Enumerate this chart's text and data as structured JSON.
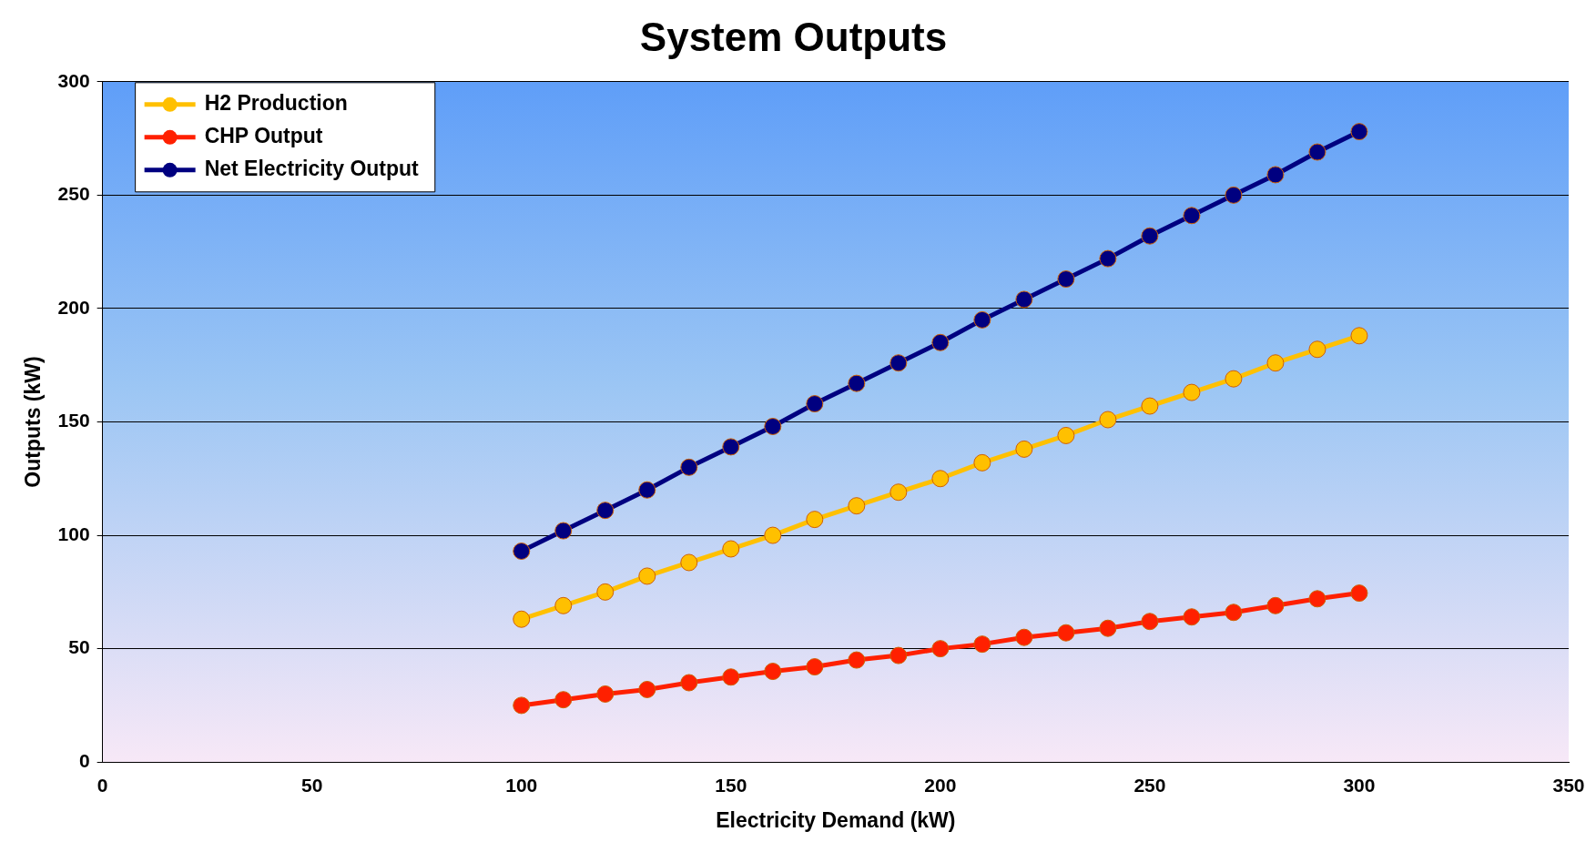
{
  "chart_data": {
    "type": "line",
    "title": "System Outputs",
    "xlabel": "Electricity Demand (kW)",
    "ylabel": "Outputs (kW)",
    "x": [
      100,
      110,
      120,
      130,
      140,
      150,
      160,
      170,
      180,
      190,
      200,
      210,
      220,
      230,
      240,
      250,
      260,
      270,
      280,
      290,
      300
    ],
    "series": [
      {
        "name": "H2 Production",
        "color": "#ffc000",
        "values": [
          63,
          69,
          75,
          82,
          88,
          94,
          100,
          107,
          113,
          119,
          125,
          132,
          138,
          144,
          151,
          157,
          163,
          169,
          176,
          182,
          188
        ]
      },
      {
        "name": "CHP Output",
        "color": "#ff2000",
        "values": [
          25,
          27.5,
          30,
          32,
          35,
          37.5,
          40,
          42,
          45,
          47,
          50,
          52,
          55,
          57,
          59,
          62,
          64,
          66,
          69,
          72,
          74.5
        ]
      },
      {
        "name": "Net Electricity Output",
        "color": "#000080",
        "values": [
          93,
          102,
          111,
          120,
          130,
          139,
          148,
          158,
          167,
          176,
          185,
          195,
          204,
          213,
          222,
          232,
          241,
          250,
          259,
          269,
          278
        ]
      }
    ],
    "xlim": [
      0,
      350
    ],
    "xticks": [
      0,
      50,
      100,
      150,
      200,
      250,
      300,
      350
    ],
    "ylim": [
      0,
      300
    ],
    "yticks": [
      0,
      50,
      100,
      150,
      200,
      250,
      300
    ],
    "grid": "y",
    "legend": "top left",
    "marker": "circle",
    "line_style": "solid"
  }
}
